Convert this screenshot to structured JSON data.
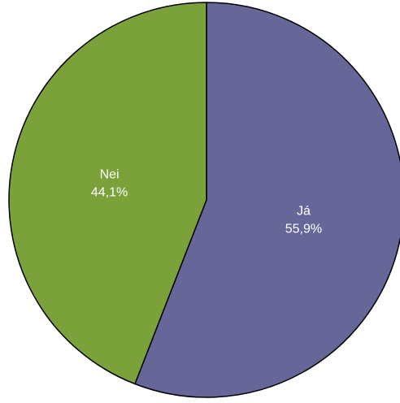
{
  "chart_data": {
    "type": "pie",
    "slices": [
      {
        "label": "Já",
        "value": 55.9,
        "value_label": "55,9%",
        "color": "#666699"
      },
      {
        "label": "Nei",
        "value": 44.1,
        "value_label": "44,1%",
        "color": "#7BA23A"
      }
    ],
    "start": "12 o'clock",
    "direction": "clockwise",
    "label_color": "#ffffff",
    "outline_color": "#000000"
  }
}
